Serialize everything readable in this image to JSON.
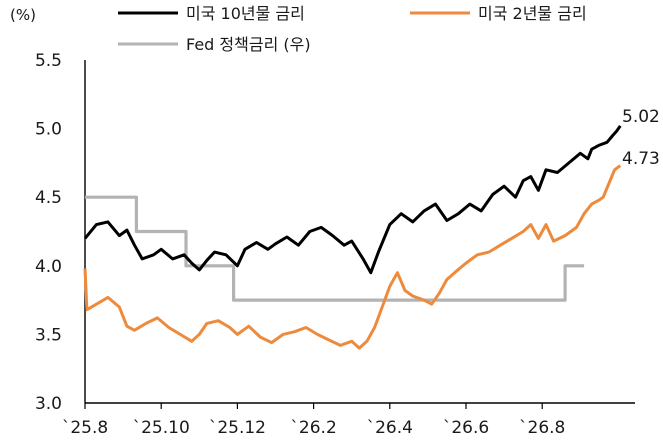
{
  "chart_data": {
    "type": "line",
    "unit_label": "(%)",
    "ylim": [
      3.0,
      5.5
    ],
    "y_ticks": [
      "3.0",
      "3.5",
      "4.0",
      "4.5",
      "5.0",
      "5.5"
    ],
    "x_tick_labels": [
      "`25.8",
      "`25.10",
      "`25.12",
      "`26.2",
      "`26.4",
      "`26.6",
      "`26.8"
    ],
    "x_range_months": [
      0,
      14.5
    ],
    "legend": [
      {
        "label": "미국 10년물 금리",
        "color": "#000000"
      },
      {
        "label": "미국 2년물 금리",
        "color": "#ee8a3c"
      },
      {
        "label": "Fed 정책금리 (우)",
        "color": "#b3b3b3"
      }
    ],
    "annotations": [
      {
        "text": "5.02",
        "series": "ten_year"
      },
      {
        "text": "4.73",
        "series": "two_year"
      }
    ],
    "series": {
      "ten_year": {
        "color": "#000000",
        "points": [
          [
            0,
            4.2
          ],
          [
            0.3,
            4.3
          ],
          [
            0.6,
            4.32
          ],
          [
            0.9,
            4.22
          ],
          [
            1.1,
            4.26
          ],
          [
            1.3,
            4.15
          ],
          [
            1.5,
            4.05
          ],
          [
            1.8,
            4.08
          ],
          [
            2.0,
            4.12
          ],
          [
            2.3,
            4.05
          ],
          [
            2.6,
            4.08
          ],
          [
            2.8,
            4.02
          ],
          [
            3.0,
            3.97
          ],
          [
            3.2,
            4.04
          ],
          [
            3.4,
            4.1
          ],
          [
            3.7,
            4.08
          ],
          [
            4.0,
            4.0
          ],
          [
            4.2,
            4.12
          ],
          [
            4.5,
            4.17
          ],
          [
            4.8,
            4.12
          ],
          [
            5.0,
            4.16
          ],
          [
            5.3,
            4.21
          ],
          [
            5.6,
            4.15
          ],
          [
            5.9,
            4.25
          ],
          [
            6.2,
            4.28
          ],
          [
            6.5,
            4.22
          ],
          [
            6.8,
            4.15
          ],
          [
            7.0,
            4.18
          ],
          [
            7.3,
            4.05
          ],
          [
            7.5,
            3.95
          ],
          [
            7.7,
            4.1
          ],
          [
            8.0,
            4.3
          ],
          [
            8.3,
            4.38
          ],
          [
            8.6,
            4.32
          ],
          [
            8.9,
            4.4
          ],
          [
            9.2,
            4.45
          ],
          [
            9.5,
            4.33
          ],
          [
            9.8,
            4.38
          ],
          [
            10.1,
            4.45
          ],
          [
            10.4,
            4.4
          ],
          [
            10.7,
            4.52
          ],
          [
            11.0,
            4.58
          ],
          [
            11.3,
            4.5
          ],
          [
            11.5,
            4.62
          ],
          [
            11.7,
            4.65
          ],
          [
            11.9,
            4.55
          ],
          [
            12.1,
            4.7
          ],
          [
            12.4,
            4.68
          ],
          [
            12.7,
            4.75
          ],
          [
            13.0,
            4.82
          ],
          [
            13.2,
            4.78
          ],
          [
            13.3,
            4.85
          ],
          [
            13.5,
            4.88
          ],
          [
            13.7,
            4.9
          ],
          [
            13.85,
            4.95
          ],
          [
            13.95,
            4.98
          ],
          [
            14.05,
            5.02
          ]
        ]
      },
      "two_year": {
        "color": "#ee8a3c",
        "points": [
          [
            0,
            3.98
          ],
          [
            0.05,
            3.68
          ],
          [
            0.3,
            3.72
          ],
          [
            0.6,
            3.77
          ],
          [
            0.9,
            3.7
          ],
          [
            1.1,
            3.56
          ],
          [
            1.3,
            3.53
          ],
          [
            1.6,
            3.58
          ],
          [
            1.9,
            3.62
          ],
          [
            2.2,
            3.55
          ],
          [
            2.5,
            3.5
          ],
          [
            2.8,
            3.45
          ],
          [
            3.0,
            3.5
          ],
          [
            3.2,
            3.58
          ],
          [
            3.5,
            3.6
          ],
          [
            3.8,
            3.55
          ],
          [
            4.0,
            3.5
          ],
          [
            4.3,
            3.56
          ],
          [
            4.6,
            3.48
          ],
          [
            4.9,
            3.44
          ],
          [
            5.2,
            3.5
          ],
          [
            5.5,
            3.52
          ],
          [
            5.8,
            3.55
          ],
          [
            6.1,
            3.5
          ],
          [
            6.4,
            3.46
          ],
          [
            6.7,
            3.42
          ],
          [
            7.0,
            3.45
          ],
          [
            7.2,
            3.4
          ],
          [
            7.4,
            3.45
          ],
          [
            7.6,
            3.55
          ],
          [
            7.8,
            3.7
          ],
          [
            8.0,
            3.85
          ],
          [
            8.2,
            3.95
          ],
          [
            8.4,
            3.82
          ],
          [
            8.6,
            3.78
          ],
          [
            8.9,
            3.75
          ],
          [
            9.1,
            3.72
          ],
          [
            9.3,
            3.8
          ],
          [
            9.5,
            3.9
          ],
          [
            9.7,
            3.95
          ],
          [
            10.0,
            4.02
          ],
          [
            10.3,
            4.08
          ],
          [
            10.6,
            4.1
          ],
          [
            10.9,
            4.15
          ],
          [
            11.2,
            4.2
          ],
          [
            11.5,
            4.25
          ],
          [
            11.7,
            4.3
          ],
          [
            11.9,
            4.2
          ],
          [
            12.1,
            4.3
          ],
          [
            12.3,
            4.18
          ],
          [
            12.6,
            4.22
          ],
          [
            12.9,
            4.28
          ],
          [
            13.1,
            4.38
          ],
          [
            13.3,
            4.45
          ],
          [
            13.5,
            4.48
          ],
          [
            13.6,
            4.5
          ],
          [
            13.75,
            4.6
          ],
          [
            13.9,
            4.7
          ],
          [
            14.05,
            4.73
          ]
        ]
      },
      "fed_rate": {
        "color": "#b3b3b3",
        "points": [
          [
            0,
            4.5
          ],
          [
            1.35,
            4.5
          ],
          [
            1.35,
            4.25
          ],
          [
            2.65,
            4.25
          ],
          [
            2.65,
            4.0
          ],
          [
            3.9,
            4.0
          ],
          [
            3.9,
            3.75
          ],
          [
            12.6,
            3.75
          ],
          [
            12.6,
            4.0
          ],
          [
            13.1,
            4.0
          ]
        ]
      }
    }
  }
}
